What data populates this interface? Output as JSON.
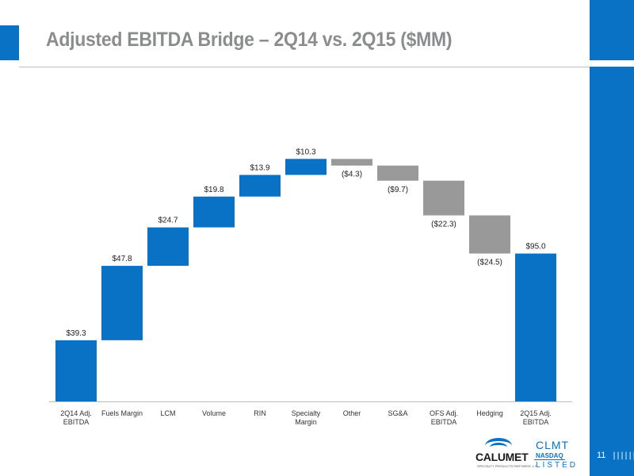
{
  "slide": {
    "title": "Adjusted EBITDA Bridge – 2Q14 vs. 2Q15 ($MM)",
    "page_number": "11",
    "footer_bars": "||||||||"
  },
  "logos": {
    "company": "CALUMET",
    "company_sub": "SPECIALTY PRODUCTS PARTNERS, L.P.",
    "ticker": "CLMT",
    "exchange": "NASDAQ",
    "listed": "LISTED"
  },
  "colors": {
    "increase": "#0a72c5",
    "decrease": "#999999",
    "total": "#0a72c5",
    "accent": "#0a72c5"
  },
  "chart_data": {
    "type": "bar",
    "subtype": "waterfall",
    "title": "Adjusted EBITDA Bridge – 2Q14 vs. 2Q15 ($MM)",
    "ylim": [
      0,
      212
    ],
    "grid": false,
    "categories": [
      [
        "2Q14 Adj.",
        "EBITDA"
      ],
      [
        "Fuels Margin"
      ],
      [
        "LCM"
      ],
      [
        "Volume"
      ],
      [
        "RIN"
      ],
      [
        "Specialty",
        "Margin"
      ],
      [
        "Other"
      ],
      [
        "SG&A"
      ],
      [
        "OFS Adj.",
        "EBITDA"
      ],
      [
        "Hedging"
      ],
      [
        "2Q15 Adj.",
        "EBITDA"
      ]
    ],
    "values": [
      39.3,
      47.8,
      24.7,
      19.8,
      13.9,
      10.3,
      -4.3,
      -9.7,
      -22.3,
      -24.5,
      95.0
    ],
    "kinds": [
      "total",
      "increase",
      "increase",
      "increase",
      "increase",
      "increase",
      "decrease",
      "decrease",
      "decrease",
      "decrease",
      "total"
    ],
    "data_labels": [
      "$39.3",
      "$47.8",
      "$24.7",
      "$19.8",
      "$13.9",
      "$10.3",
      "($4.3)",
      "($9.7)",
      "($22.3)",
      "($24.5)",
      "$95.0"
    ]
  }
}
